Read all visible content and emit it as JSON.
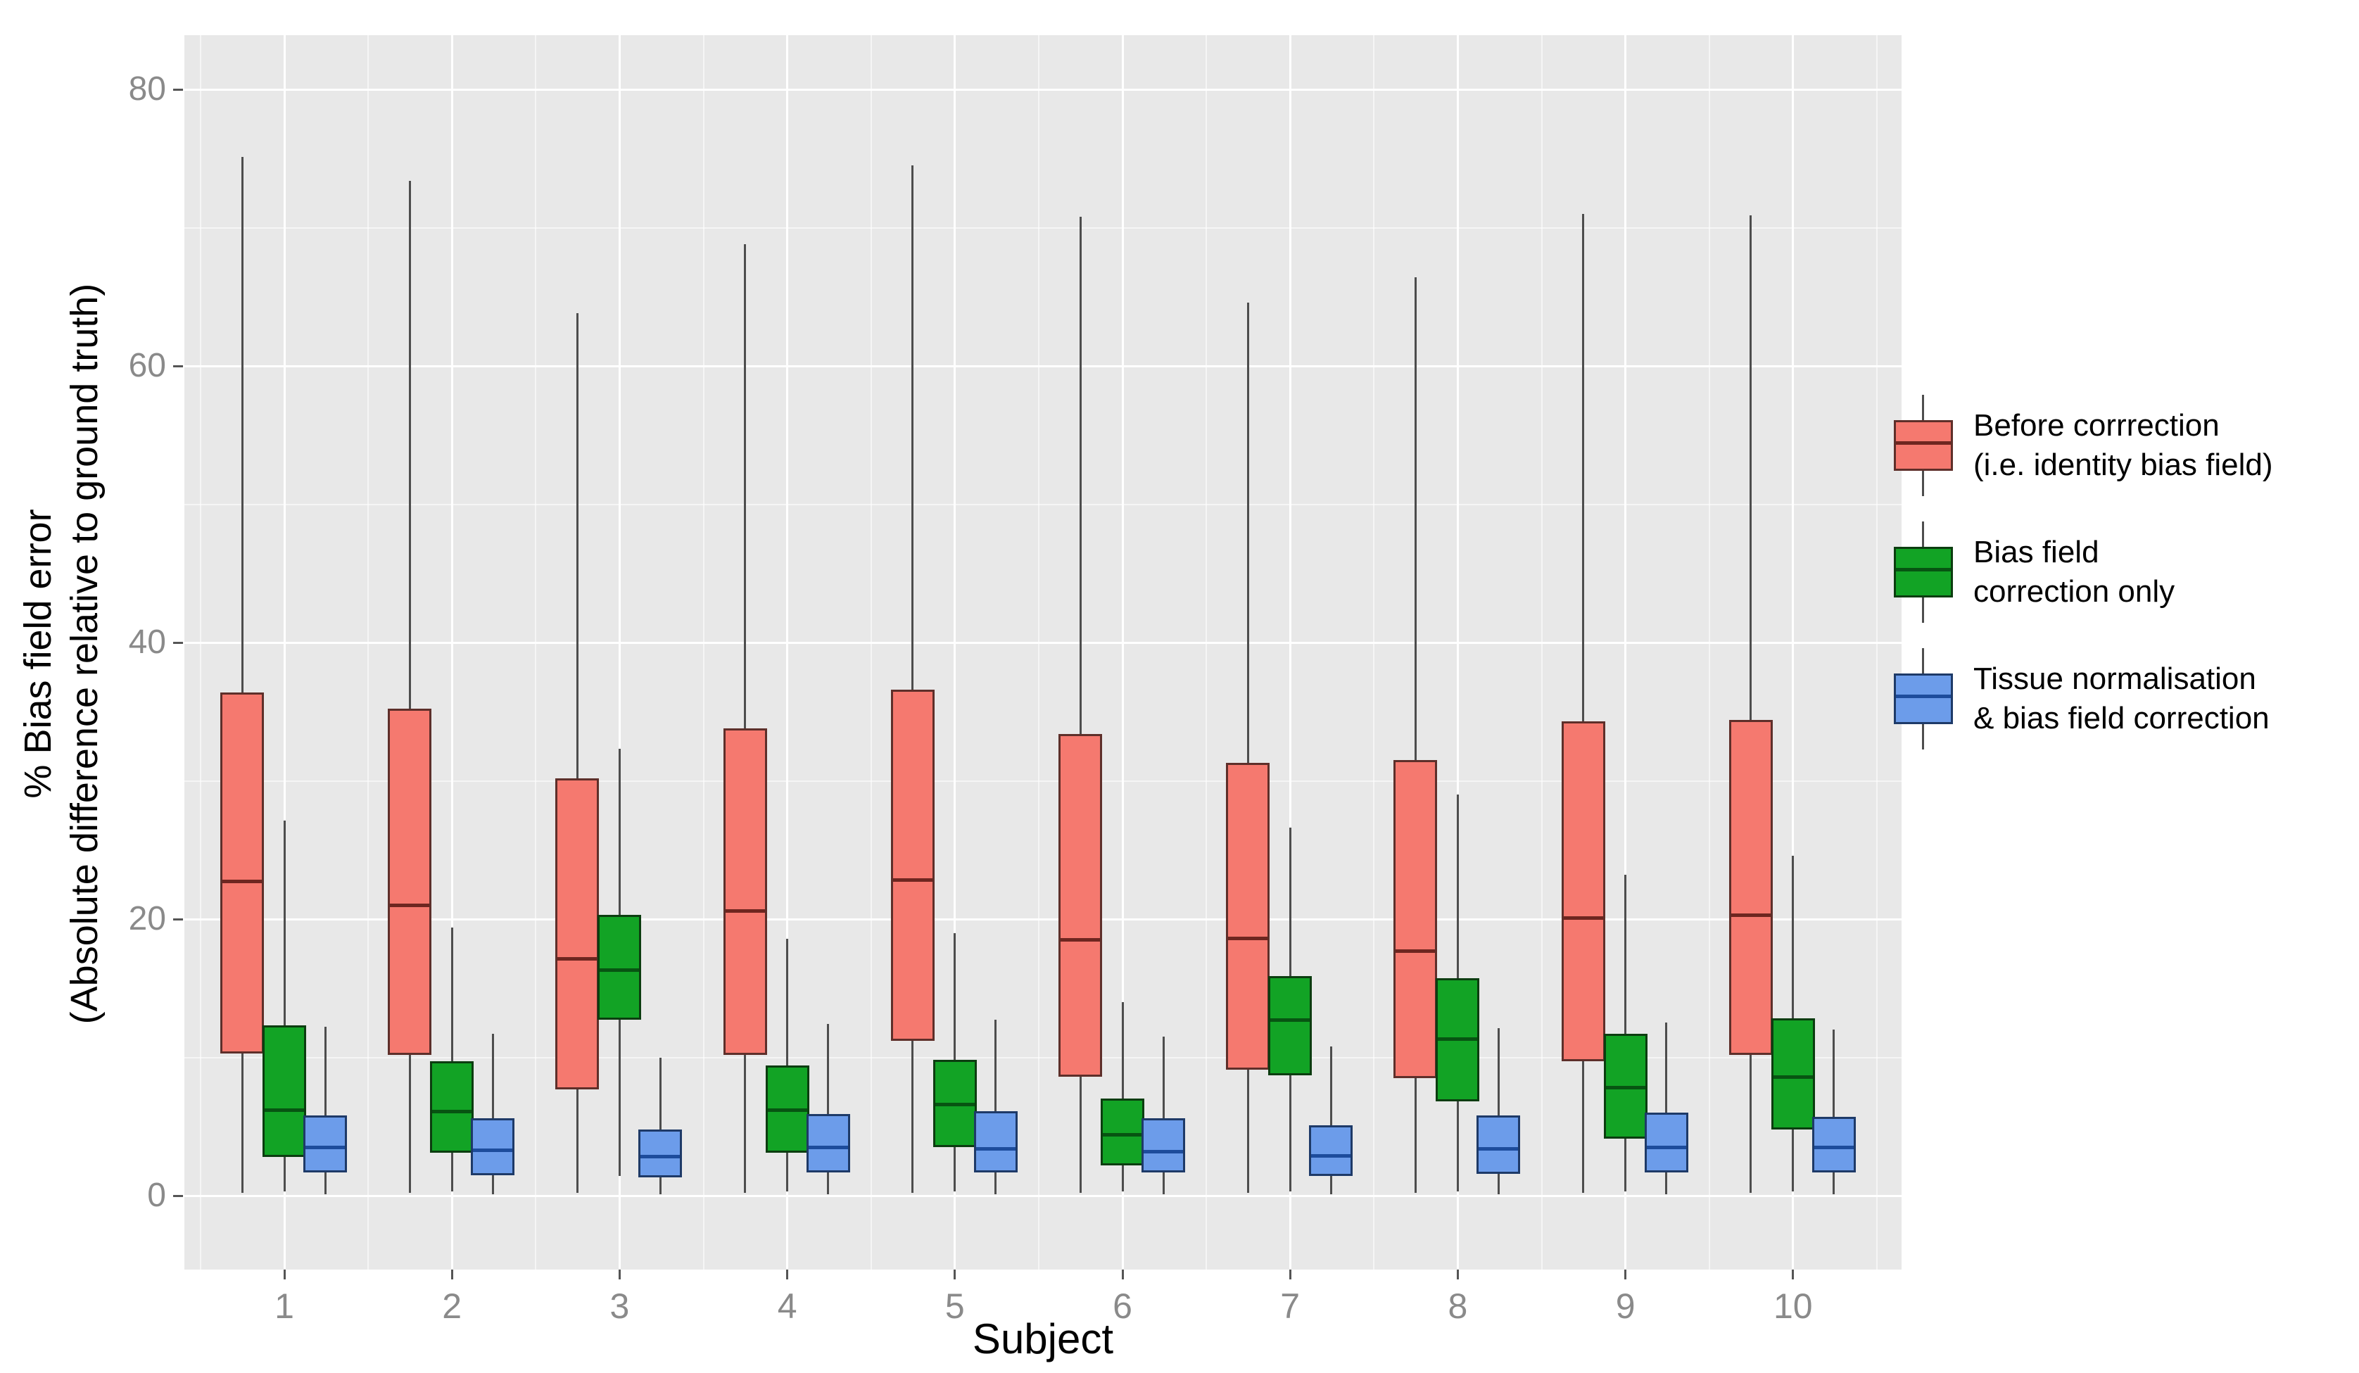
{
  "y_axis": {
    "title": "% Bias field error\n(Absolute difference relative to ground truth)",
    "tick_labels": [
      "0",
      "20",
      "40",
      "60",
      "80"
    ]
  },
  "x_axis": {
    "title": "Subject",
    "tick_labels": [
      "1",
      "2",
      "3",
      "4",
      "5",
      "6",
      "7",
      "8",
      "9",
      "10"
    ]
  },
  "colors": {
    "panel_background": "#E8E8E8",
    "gridline": "#FFFFFF",
    "whisker": "#4D4D4D",
    "tick_label_text": "#8A8A8A",
    "axis_title_text": "#000000"
  },
  "chart_data": {
    "type": "boxplot",
    "x_categories": [
      "1",
      "2",
      "3",
      "4",
      "5",
      "6",
      "7",
      "8",
      "9",
      "10"
    ],
    "xlabel": "Subject",
    "ylabel": "% Bias field error\n(Absolute difference relative to ground truth)",
    "ylim": [
      -5.3,
      83.9
    ],
    "y_major_ticks": [
      0,
      20,
      40,
      60,
      80
    ],
    "y_minor_ticks": [
      10,
      30,
      50,
      70
    ],
    "grid": "white major and minor gridlines on gray panel",
    "legend_position": "right",
    "box_value_order": [
      "whisker_low",
      "q1",
      "median",
      "q3",
      "whisker_high"
    ],
    "series": [
      {
        "name": "Before corrrection\n(i.e. identity bias field)",
        "fill": "#F5796F",
        "border": "#5E2F2A",
        "median_color": "#6E2620",
        "boxes": [
          [
            0.2,
            10.3,
            22.7,
            36.4,
            75.1
          ],
          [
            0.2,
            10.2,
            21.0,
            35.2,
            73.4
          ],
          [
            0.2,
            7.7,
            17.1,
            30.2,
            63.8
          ],
          [
            0.2,
            10.2,
            20.6,
            33.8,
            68.8
          ],
          [
            0.2,
            11.2,
            22.8,
            36.6,
            74.5
          ],
          [
            0.2,
            8.6,
            18.5,
            33.4,
            70.8
          ],
          [
            0.2,
            9.1,
            18.6,
            31.3,
            64.6
          ],
          [
            0.2,
            8.5,
            17.7,
            31.5,
            66.4
          ],
          [
            0.2,
            9.7,
            20.1,
            34.3,
            71.0
          ],
          [
            0.2,
            10.2,
            20.3,
            34.4,
            70.9
          ]
        ]
      },
      {
        "name": "Bias field\ncorrection only",
        "fill": "#12A325",
        "border": "#0C3D10",
        "median_color": "#075412",
        "boxes": [
          [
            0.3,
            2.8,
            6.2,
            12.3,
            27.1
          ],
          [
            0.3,
            3.1,
            6.1,
            9.7,
            19.4
          ],
          [
            1.4,
            12.7,
            16.3,
            20.3,
            32.3
          ],
          [
            0.3,
            3.1,
            6.2,
            9.4,
            18.6
          ],
          [
            0.3,
            3.5,
            6.6,
            9.8,
            19.0
          ],
          [
            0.3,
            2.2,
            4.4,
            7.0,
            14.0
          ],
          [
            0.3,
            8.7,
            12.7,
            15.9,
            26.6
          ],
          [
            0.3,
            6.8,
            11.3,
            15.7,
            29.0
          ],
          [
            0.3,
            4.1,
            7.8,
            11.7,
            23.2
          ],
          [
            0.3,
            4.8,
            8.6,
            12.8,
            24.6
          ]
        ]
      },
      {
        "name": "Tissue normalisation\n& bias field correction",
        "fill": "#6C9CEA",
        "border": "#1E3A68",
        "median_color": "#1D4C9C",
        "boxes": [
          [
            0.1,
            1.7,
            3.5,
            5.8,
            12.2
          ],
          [
            0.1,
            1.5,
            3.3,
            5.6,
            11.7
          ],
          [
            0.1,
            1.3,
            2.8,
            4.8,
            10.0
          ],
          [
            0.1,
            1.7,
            3.5,
            5.9,
            12.4
          ],
          [
            0.1,
            1.7,
            3.4,
            6.1,
            12.7
          ],
          [
            0.1,
            1.7,
            3.2,
            5.6,
            11.5
          ],
          [
            0.1,
            1.4,
            2.9,
            5.1,
            10.8
          ],
          [
            0.1,
            1.6,
            3.4,
            5.8,
            12.1
          ],
          [
            0.1,
            1.7,
            3.5,
            6.0,
            12.5
          ],
          [
            0.1,
            1.7,
            3.5,
            5.7,
            12.0
          ]
        ]
      }
    ]
  }
}
